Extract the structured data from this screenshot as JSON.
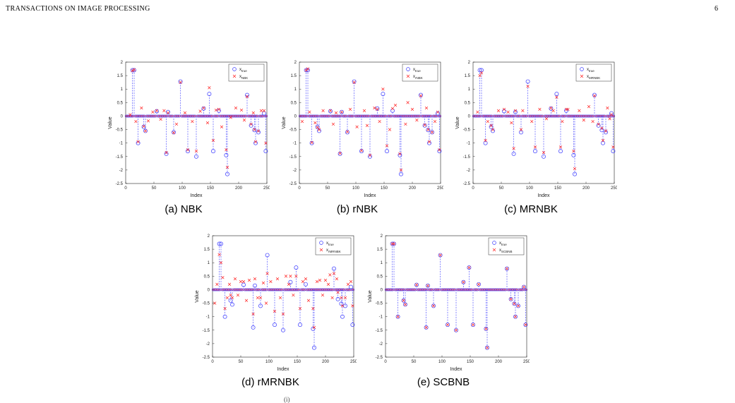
{
  "header": {
    "running_head": "TRANSACTIONS ON IMAGE PROCESSING",
    "page_number": "6"
  },
  "footer_fragment": "(i)",
  "figure": {
    "panels": [
      {
        "caption": "(a) NBK",
        "legend": [
          "x",
          "true",
          "x",
          "NBK"
        ]
      },
      {
        "caption": "(b) rNBK",
        "legend": [
          "x",
          "true",
          "x",
          "rNBK"
        ]
      },
      {
        "caption": "(c) MRNBK",
        "legend": [
          "x",
          "true",
          "x",
          "MRNBK"
        ]
      },
      {
        "caption": "(d) rMRNBK",
        "legend": [
          "x",
          "true",
          "x",
          "rMRNBK"
        ]
      },
      {
        "caption": "(e) SCBNB",
        "legend": [
          "x",
          "true",
          "x",
          "SCBNB"
        ]
      }
    ]
  },
  "chart_data": [
    {
      "type": "scatter",
      "title": "",
      "xlabel": "Index",
      "ylabel": "Value",
      "xlim": [
        0,
        250
      ],
      "ylim": [
        -2.5,
        2
      ],
      "xticks": [
        0,
        50,
        100,
        150,
        200,
        250
      ],
      "yticks": [
        2,
        1.5,
        1,
        0.5,
        0,
        -0.5,
        -1,
        -1.5,
        -2,
        -2.5
      ],
      "legend_position": "top-right",
      "series": [
        {
          "name": "x_true",
          "marker": "circle",
          "color": "#3a3aff",
          "stem": true,
          "x": [
            12,
            15,
            22,
            32,
            35,
            55,
            72,
            75,
            85,
            97,
            110,
            125,
            138,
            148,
            155,
            165,
            178,
            180,
            215,
            222,
            228,
            230,
            235,
            245,
            248
          ],
          "y": [
            1.7,
            1.7,
            -1.0,
            -0.4,
            -0.55,
            0.18,
            -1.4,
            0.15,
            -0.6,
            1.28,
            -1.3,
            -1.5,
            0.28,
            0.82,
            -1.3,
            0.2,
            -1.45,
            -2.15,
            0.78,
            -0.35,
            -0.52,
            -1.0,
            -0.6,
            0.1,
            -1.3
          ]
        },
        {
          "name": "x_NBK",
          "marker": "x",
          "color": "#ff2020",
          "stem": false,
          "x": [
            12,
            15,
            22,
            32,
            35,
            55,
            72,
            75,
            85,
            97,
            110,
            125,
            138,
            148,
            155,
            165,
            178,
            180,
            215,
            222,
            228,
            230,
            235,
            245,
            248,
            8,
            18,
            28,
            40,
            48,
            62,
            68,
            90,
            105,
            118,
            132,
            145,
            160,
            170,
            186,
            195,
            205,
            210,
            226,
            240
          ],
          "y": [
            1.68,
            1.72,
            -0.95,
            -0.38,
            -0.55,
            0.2,
            -1.35,
            0.12,
            -0.62,
            1.25,
            -1.25,
            -1.3,
            0.3,
            1.05,
            -0.9,
            0.25,
            -1.25,
            -1.9,
            0.72,
            -0.3,
            -0.5,
            -0.95,
            -0.55,
            0.2,
            -1.0,
            0.05,
            -0.2,
            0.3,
            -0.18,
            0.15,
            -0.12,
            0.2,
            -0.3,
            0.12,
            -0.2,
            0.18,
            -0.25,
            0.22,
            -0.4,
            -0.05,
            0.3,
            0.22,
            -0.15,
            0.12,
            0.2
          ]
        }
      ]
    },
    {
      "type": "scatter",
      "title": "",
      "xlabel": "Index",
      "ylabel": "Value",
      "xlim": [
        0,
        250
      ],
      "ylim": [
        -2.5,
        2
      ],
      "xticks": [
        0,
        50,
        100,
        150,
        200,
        250
      ],
      "yticks": [
        2,
        1.5,
        1,
        0.5,
        0,
        -0.5,
        -1,
        -1.5,
        -2,
        -2.5
      ],
      "legend_position": "top-right",
      "series": [
        {
          "name": "x_true",
          "marker": "circle",
          "color": "#3a3aff",
          "stem": true,
          "x": [
            12,
            15,
            22,
            32,
            35,
            55,
            72,
            75,
            85,
            97,
            110,
            125,
            138,
            148,
            155,
            165,
            178,
            180,
            215,
            222,
            228,
            230,
            235,
            245,
            248
          ],
          "y": [
            1.7,
            1.7,
            -1.0,
            -0.4,
            -0.55,
            0.18,
            -1.4,
            0.15,
            -0.6,
            1.28,
            -1.3,
            -1.5,
            0.28,
            0.82,
            -1.3,
            0.2,
            -1.45,
            -2.15,
            0.78,
            -0.35,
            -0.52,
            -1.0,
            -0.6,
            0.1,
            -1.3
          ]
        },
        {
          "name": "x_rNBK",
          "marker": "x",
          "color": "#ff2020",
          "stem": false,
          "x": [
            12,
            15,
            22,
            32,
            35,
            55,
            72,
            75,
            85,
            97,
            110,
            125,
            138,
            148,
            155,
            165,
            178,
            180,
            215,
            222,
            228,
            230,
            235,
            245,
            248,
            5,
            18,
            28,
            42,
            60,
            65,
            90,
            102,
            115,
            120,
            133,
            142,
            160,
            170,
            188,
            192,
            200,
            208,
            225,
            240
          ],
          "y": [
            1.7,
            1.75,
            -0.98,
            -0.42,
            -0.5,
            0.2,
            -1.38,
            0.15,
            -0.58,
            1.25,
            -1.28,
            -1.45,
            0.25,
            1.0,
            -1.1,
            0.28,
            -1.4,
            -2.0,
            0.75,
            -0.33,
            -0.5,
            -0.95,
            -0.6,
            0.15,
            -1.25,
            -0.2,
            0.15,
            -0.25,
            0.2,
            -0.3,
            0.12,
            0.25,
            -0.4,
            0.2,
            -0.35,
            0.3,
            -0.2,
            -0.5,
            0.4,
            -0.3,
            0.5,
            0.25,
            -0.15,
            0.3,
            -0.2
          ]
        }
      ]
    },
    {
      "type": "scatter",
      "title": "",
      "xlabel": "Index",
      "ylabel": "Value",
      "xlim": [
        0,
        250
      ],
      "ylim": [
        -2.5,
        2
      ],
      "xticks": [
        0,
        50,
        100,
        150,
        200,
        250
      ],
      "yticks": [
        2,
        1.5,
        1,
        0.5,
        0,
        -0.5,
        -1,
        -1.5,
        -2,
        -2.5
      ],
      "legend_position": "top-right",
      "series": [
        {
          "name": "x_true",
          "marker": "circle",
          "color": "#3a3aff",
          "stem": true,
          "x": [
            12,
            15,
            22,
            32,
            35,
            55,
            72,
            75,
            85,
            97,
            110,
            125,
            138,
            148,
            155,
            165,
            178,
            180,
            215,
            222,
            228,
            230,
            235,
            245,
            248
          ],
          "y": [
            1.7,
            1.7,
            -1.0,
            -0.4,
            -0.55,
            0.18,
            -1.4,
            0.15,
            -0.6,
            1.28,
            -1.3,
            -1.5,
            0.28,
            0.82,
            -1.3,
            0.2,
            -1.45,
            -2.15,
            0.78,
            -0.35,
            -0.52,
            -1.0,
            -0.6,
            0.1,
            -1.3
          ]
        },
        {
          "name": "x_MRNBK",
          "marker": "x",
          "color": "#ff2020",
          "stem": false,
          "x": [
            12,
            15,
            22,
            32,
            35,
            55,
            72,
            75,
            85,
            97,
            110,
            125,
            138,
            148,
            155,
            165,
            178,
            180,
            215,
            222,
            228,
            230,
            235,
            245,
            248,
            8,
            26,
            45,
            62,
            68,
            88,
            104,
            118,
            130,
            142,
            158,
            168,
            188,
            196,
            205,
            212,
            238,
            242
          ],
          "y": [
            1.5,
            1.6,
            -0.9,
            -0.35,
            -0.5,
            0.25,
            -1.2,
            0.2,
            -0.5,
            1.1,
            -1.15,
            -1.35,
            0.3,
            0.7,
            -1.15,
            0.25,
            -1.3,
            -1.95,
            0.75,
            -0.3,
            -0.45,
            -0.9,
            -0.55,
            0.05,
            -1.15,
            0.15,
            -0.2,
            0.2,
            0.15,
            -0.25,
            0.2,
            -0.2,
            0.25,
            -0.1,
            0.2,
            -0.2,
            0.25,
            0.2,
            -0.15,
            0.35,
            -0.2,
            0.3,
            -0.1
          ]
        }
      ]
    },
    {
      "type": "scatter",
      "title": "",
      "xlabel": "Index",
      "ylabel": "Value",
      "xlim": [
        0,
        250
      ],
      "ylim": [
        -2.5,
        2
      ],
      "xticks": [
        0,
        50,
        100,
        150,
        200,
        250
      ],
      "yticks": [
        2,
        1.5,
        1,
        0.5,
        0,
        -0.5,
        -1,
        -1.5,
        -2,
        -2.5
      ],
      "legend_position": "top-right",
      "series": [
        {
          "name": "x_true",
          "marker": "circle",
          "color": "#3a3aff",
          "stem": true,
          "x": [
            12,
            15,
            22,
            32,
            35,
            55,
            72,
            75,
            85,
            97,
            110,
            125,
            138,
            148,
            155,
            165,
            178,
            180,
            215,
            222,
            228,
            230,
            235,
            245,
            248
          ],
          "y": [
            1.7,
            1.7,
            -1.0,
            -0.4,
            -0.55,
            0.18,
            -1.4,
            0.15,
            -0.6,
            1.28,
            -1.3,
            -1.5,
            0.28,
            0.82,
            -1.3,
            0.2,
            -1.45,
            -2.15,
            0.78,
            -0.35,
            -0.52,
            -1.0,
            -0.6,
            0.1,
            -1.3
          ]
        },
        {
          "name": "x_rMRNBK",
          "marker": "x",
          "color": "#ff2020",
          "stem": false,
          "x": [
            12,
            15,
            22,
            32,
            35,
            55,
            72,
            75,
            85,
            97,
            110,
            125,
            138,
            148,
            155,
            165,
            178,
            180,
            215,
            222,
            228,
            230,
            235,
            245,
            248,
            4,
            8,
            18,
            26,
            30,
            40,
            45,
            50,
            60,
            65,
            80,
            90,
            95,
            103,
            115,
            120,
            130,
            135,
            143,
            160,
            170,
            185,
            190,
            195,
            200,
            205,
            208,
            212,
            220,
            240
          ],
          "y": [
            1.3,
            1.0,
            -0.7,
            -0.2,
            -0.3,
            0.3,
            -0.9,
            0.4,
            -0.3,
            0.6,
            -0.8,
            -0.9,
            0.5,
            0.5,
            -0.7,
            0.4,
            -0.7,
            -1.4,
            0.6,
            -0.1,
            -0.3,
            -0.6,
            -0.3,
            0.3,
            -0.6,
            -0.5,
            0.2,
            0.45,
            -0.3,
            0.2,
            0.4,
            -0.2,
            0.3,
            -0.4,
            0.35,
            -0.3,
            0.25,
            -0.5,
            0.3,
            0.4,
            -0.3,
            0.5,
            0.2,
            -0.2,
            0.3,
            -0.4,
            0.3,
            0.35,
            -0.2,
            0.35,
            0.2,
            0.55,
            -0.3,
            0.4,
            0.2
          ]
        }
      ]
    },
    {
      "type": "scatter",
      "title": "",
      "xlabel": "Index",
      "ylabel": "Value",
      "xlim": [
        0,
        250
      ],
      "ylim": [
        -2.5,
        2
      ],
      "xticks": [
        0,
        50,
        100,
        150,
        200,
        250
      ],
      "yticks": [
        2,
        1.5,
        1,
        0.5,
        0,
        -0.5,
        -1,
        -1.5,
        -2,
        -2.5
      ],
      "legend_position": "top-right",
      "series": [
        {
          "name": "x_true",
          "marker": "circle",
          "color": "#3a3aff",
          "stem": true,
          "x": [
            12,
            15,
            22,
            32,
            35,
            55,
            72,
            75,
            85,
            97,
            110,
            125,
            138,
            148,
            155,
            165,
            178,
            180,
            215,
            222,
            228,
            230,
            235,
            245,
            248
          ],
          "y": [
            1.7,
            1.7,
            -1.0,
            -0.4,
            -0.55,
            0.18,
            -1.4,
            0.15,
            -0.6,
            1.28,
            -1.3,
            -1.5,
            0.28,
            0.82,
            -1.3,
            0.2,
            -1.45,
            -2.15,
            0.78,
            -0.35,
            -0.52,
            -1.0,
            -0.6,
            0.1,
            -1.3
          ]
        },
        {
          "name": "x_SCBNB",
          "marker": "x",
          "color": "#ff2020",
          "stem": false,
          "x": [
            12,
            15,
            22,
            32,
            35,
            55,
            72,
            75,
            85,
            97,
            110,
            125,
            138,
            148,
            155,
            165,
            178,
            180,
            215,
            222,
            228,
            230,
            235,
            245,
            248
          ],
          "y": [
            1.7,
            1.7,
            -1.0,
            -0.4,
            -0.55,
            0.18,
            -1.4,
            0.15,
            -0.6,
            1.28,
            -1.3,
            -1.5,
            0.28,
            0.82,
            -1.3,
            0.2,
            -1.45,
            -2.15,
            0.78,
            -0.35,
            -0.52,
            -1.0,
            -0.6,
            0.1,
            -1.3
          ]
        }
      ]
    }
  ]
}
